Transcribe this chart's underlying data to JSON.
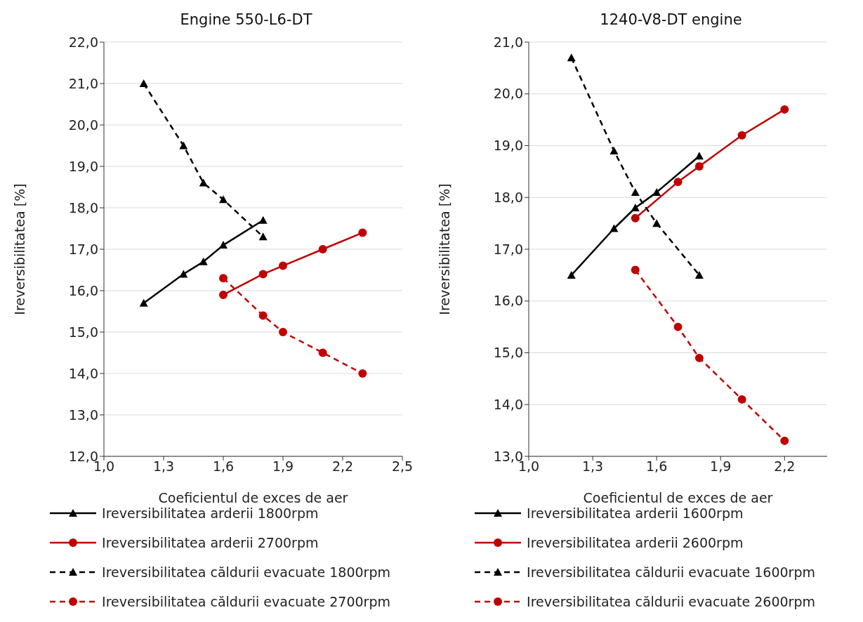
{
  "chart_data": [
    {
      "type": "line",
      "title": "Engine 550-L6-DT",
      "xlabel": "Coeficientul de exces de aer",
      "ylabel": "Ireversibilitatea [%]",
      "grid": "y",
      "legend": "bottom",
      "xlim": [
        1.0,
        2.5
      ],
      "xticks": [
        {
          "value": 1.0,
          "label": "1,0"
        },
        {
          "value": 1.3,
          "label": "1,3"
        },
        {
          "value": 1.6,
          "label": "1,6"
        },
        {
          "value": 1.9,
          "label": "1,9"
        },
        {
          "value": 2.2,
          "label": "2,2"
        },
        {
          "value": 2.5,
          "label": "2,5"
        }
      ],
      "ylim": [
        12,
        22
      ],
      "yticks": [
        {
          "value": 12,
          "label": "12,0"
        },
        {
          "value": 13,
          "label": "13,0"
        },
        {
          "value": 14,
          "label": "14,0"
        },
        {
          "value": 15,
          "label": "15,0"
        },
        {
          "value": 16,
          "label": "16,0"
        },
        {
          "value": 17,
          "label": "17,0"
        },
        {
          "value": 18,
          "label": "18,0"
        },
        {
          "value": 19,
          "label": "19,0"
        },
        {
          "value": 20,
          "label": "20,0"
        },
        {
          "value": 21,
          "label": "21,0"
        },
        {
          "value": 22,
          "label": "22,0"
        }
      ],
      "series": [
        {
          "name": "Ireversibilitatea arderii 1800rpm",
          "color": "#000000",
          "marker": "triangle",
          "line_style": "solid",
          "x": [
            1.2,
            1.4,
            1.5,
            1.6,
            1.8
          ],
          "values": [
            15.7,
            16.4,
            16.7,
            17.1,
            17.7
          ]
        },
        {
          "name": "Ireversibilitatea arderii 2700rpm",
          "color": "#c00000",
          "marker": "circle",
          "line_style": "solid",
          "x": [
            1.6,
            1.8,
            1.9,
            2.1,
            2.3
          ],
          "values": [
            15.9,
            16.4,
            16.6,
            17.0,
            17.4
          ]
        },
        {
          "name": "Ireversibilitatea căldurii evacuate 1800rpm",
          "color": "#000000",
          "marker": "triangle",
          "line_style": "dashed",
          "x": [
            1.2,
            1.4,
            1.5,
            1.6,
            1.8
          ],
          "values": [
            21.0,
            19.5,
            18.6,
            18.2,
            17.3
          ]
        },
        {
          "name": "Ireversibilitatea căldurii evacuate 2700rpm",
          "color": "#c00000",
          "marker": "circle",
          "line_style": "dashed",
          "x": [
            1.6,
            1.8,
            1.9,
            2.1,
            2.3
          ],
          "values": [
            16.3,
            15.4,
            15.0,
            14.5,
            14.0
          ]
        }
      ]
    },
    {
      "type": "line",
      "title": "1240-V8-DT engine",
      "xlabel": "Coeficientul de exces de aer",
      "ylabel": "Ireversibilitatea [%]",
      "grid": "y",
      "legend": "bottom",
      "xlim": [
        1.0,
        2.4
      ],
      "xticks": [
        {
          "value": 1.0,
          "label": "1,0"
        },
        {
          "value": 1.3,
          "label": "1,3"
        },
        {
          "value": 1.6,
          "label": "1,6"
        },
        {
          "value": 1.9,
          "label": "1,9"
        },
        {
          "value": 2.2,
          "label": "2,2"
        }
      ],
      "ylim": [
        13,
        21
      ],
      "yticks": [
        {
          "value": 13,
          "label": "13,0"
        },
        {
          "value": 14,
          "label": "14,0"
        },
        {
          "value": 15,
          "label": "15,0"
        },
        {
          "value": 16,
          "label": "16,0"
        },
        {
          "value": 17,
          "label": "17,0"
        },
        {
          "value": 18,
          "label": "18,0"
        },
        {
          "value": 19,
          "label": "19,0"
        },
        {
          "value": 20,
          "label": "20,0"
        },
        {
          "value": 21,
          "label": "21,0"
        }
      ],
      "series": [
        {
          "name": "Ireversibilitatea arderii 1600rpm",
          "color": "#000000",
          "marker": "triangle",
          "line_style": "solid",
          "x": [
            1.2,
            1.4,
            1.5,
            1.6,
            1.8
          ],
          "values": [
            16.5,
            17.4,
            17.8,
            18.1,
            18.8
          ]
        },
        {
          "name": "Ireversibilitatea arderii 2600rpm",
          "color": "#c00000",
          "marker": "circle",
          "line_style": "solid",
          "x": [
            1.5,
            1.7,
            1.8,
            2.0,
            2.2
          ],
          "values": [
            17.6,
            18.3,
            18.6,
            19.2,
            19.7
          ]
        },
        {
          "name": "Ireversibilitatea căldurii evacuate 1600rpm",
          "color": "#000000",
          "marker": "triangle",
          "line_style": "dashed",
          "x": [
            1.2,
            1.4,
            1.5,
            1.6,
            1.8
          ],
          "values": [
            20.7,
            18.9,
            18.1,
            17.5,
            16.5
          ]
        },
        {
          "name": "Ireversibilitatea căldurii evacuate 2600rpm",
          "color": "#c00000",
          "marker": "circle",
          "line_style": "dashed",
          "x": [
            1.5,
            1.7,
            1.8,
            2.0,
            2.2
          ],
          "values": [
            16.6,
            15.5,
            14.9,
            14.1,
            13.3
          ]
        }
      ]
    }
  ]
}
